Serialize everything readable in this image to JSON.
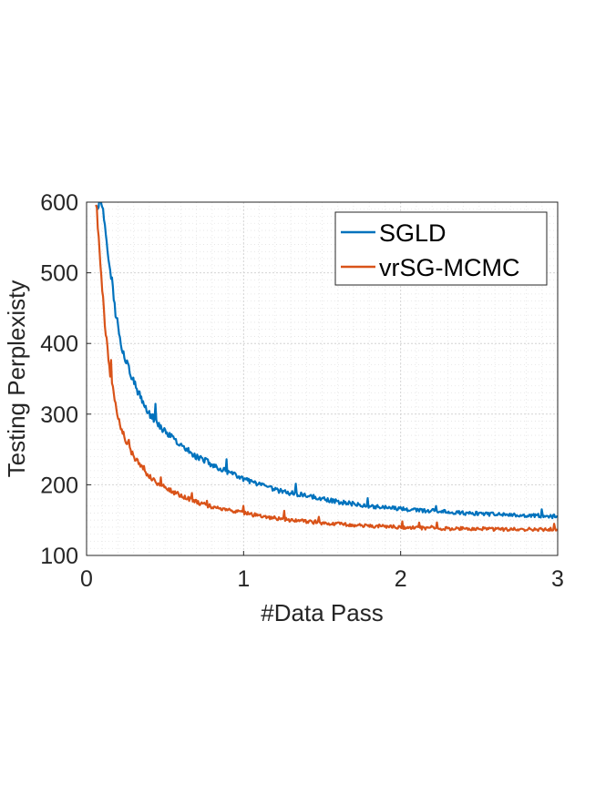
{
  "chart_data": {
    "type": "line",
    "title": "",
    "xlabel": "#Data Pass",
    "ylabel": "Testing Perplexisty",
    "xlim": [
      0,
      3
    ],
    "ylim": [
      100,
      600
    ],
    "xticks": [
      0,
      1,
      2,
      3
    ],
    "xtick_labels": [
      "0",
      "1",
      "2",
      "3"
    ],
    "yticks": [
      100,
      200,
      300,
      400,
      500,
      600
    ],
    "ytick_labels": [
      "100",
      "200",
      "300",
      "400",
      "500",
      "600"
    ],
    "grid": "on (major and minor, dotted)",
    "legend_position": "top-right",
    "series": [
      {
        "name": "SGLD",
        "color": "#0072BD",
        "x": [
          0.06,
          0.1,
          0.12,
          0.15,
          0.18,
          0.22,
          0.26,
          0.3,
          0.35,
          0.4,
          0.45,
          0.5,
          0.55,
          0.6,
          0.65,
          0.7,
          0.75,
          0.8,
          0.9,
          1.0,
          1.1,
          1.2,
          1.3,
          1.4,
          1.5,
          1.6,
          1.7,
          1.8,
          1.9,
          2.0,
          2.1,
          2.2,
          2.3,
          2.4,
          2.5,
          2.6,
          2.7,
          2.8,
          2.9,
          3.0
        ],
        "y": [
          600,
          600,
          560,
          510,
          450,
          400,
          370,
          345,
          320,
          300,
          288,
          275,
          265,
          255,
          248,
          240,
          235,
          228,
          218,
          208,
          200,
          193,
          188,
          185,
          180,
          176,
          173,
          170,
          168,
          166,
          164,
          163,
          162,
          160,
          159,
          158,
          157,
          157,
          156,
          155
        ]
      },
      {
        "name": "vrSG-MCMC",
        "color": "#D95319",
        "x": [
          0.06,
          0.08,
          0.1,
          0.12,
          0.15,
          0.18,
          0.22,
          0.26,
          0.3,
          0.35,
          0.4,
          0.45,
          0.5,
          0.55,
          0.6,
          0.65,
          0.7,
          0.75,
          0.8,
          0.9,
          1.0,
          1.1,
          1.2,
          1.3,
          1.4,
          1.5,
          1.6,
          1.7,
          1.8,
          1.9,
          2.0,
          2.1,
          2.2,
          2.3,
          2.4,
          2.5,
          2.6,
          2.7,
          2.8,
          2.9,
          3.0
        ],
        "y": [
          600,
          540,
          480,
          420,
          360,
          315,
          280,
          258,
          240,
          225,
          212,
          203,
          196,
          190,
          185,
          180,
          176,
          172,
          169,
          164,
          160,
          156,
          153,
          150,
          148,
          146,
          145,
          143,
          142,
          141,
          140,
          139,
          139,
          138,
          138,
          138,
          137,
          137,
          137,
          137,
          137
        ]
      }
    ]
  }
}
